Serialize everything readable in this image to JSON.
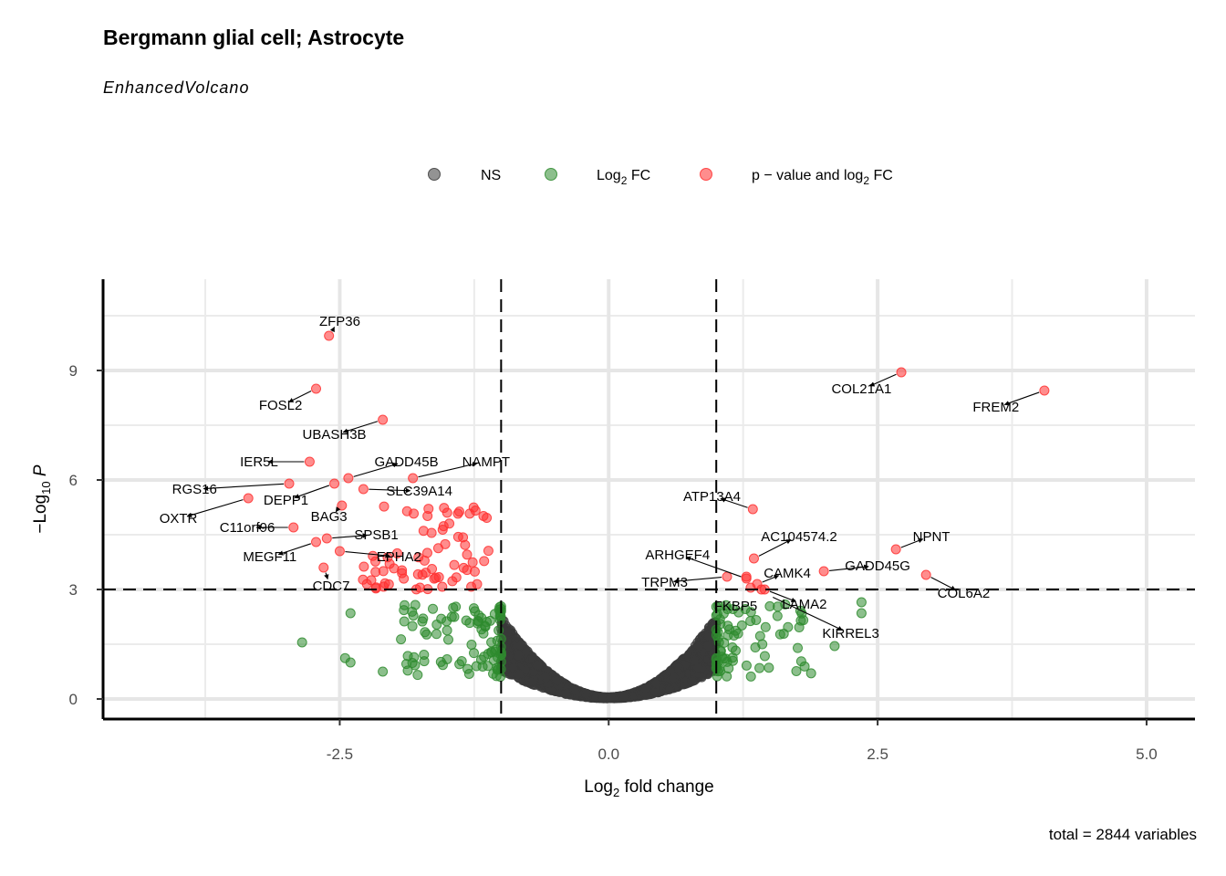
{
  "title": "Bergmann glial cell; Astrocyte",
  "subtitle": "EnhancedVolcano",
  "caption": "total = 2844 variables",
  "colors": {
    "ns": "#3a3a3a",
    "fc": "#2e8b2e",
    "both": "#ff3030"
  },
  "chart_data": {
    "type": "scatter",
    "xlabel": "Log2 fold change",
    "ylabel": "-Log10 P",
    "xlim": [
      -4.7,
      5.45
    ],
    "ylim": [
      -0.55,
      11.5
    ],
    "x_ticks": [
      "-2.5",
      "0.0",
      "2.5",
      "5.0"
    ],
    "y_ticks": [
      "0",
      "3",
      "6",
      "9"
    ],
    "fc_cutoff": 1,
    "p_cutoff": 3,
    "grid": true,
    "legend_position": "top",
    "legend": [
      {
        "key": "ns",
        "label": "NS"
      },
      {
        "key": "fc",
        "label": "Log2 FC"
      },
      {
        "key": "both",
        "label": "p - value and log2 FC"
      }
    ],
    "labeled_genes": [
      {
        "name": "ZFP36",
        "x": -2.6,
        "y": 9.95,
        "lx": -2.5,
        "ly": 10.35
      },
      {
        "name": "FOSL2",
        "x": -2.72,
        "y": 8.5,
        "lx": -3.05,
        "ly": 8.05
      },
      {
        "name": "UBASH3B",
        "x": -2.1,
        "y": 7.65,
        "lx": -2.55,
        "ly": 7.25
      },
      {
        "name": "IER5L",
        "x": -2.78,
        "y": 6.5,
        "lx": -3.25,
        "ly": 6.5
      },
      {
        "name": "GADD45B",
        "x": -2.42,
        "y": 6.05,
        "lx": -1.88,
        "ly": 6.5
      },
      {
        "name": "NAMPT",
        "x": -1.82,
        "y": 6.05,
        "lx": -1.14,
        "ly": 6.5
      },
      {
        "name": "RGS16",
        "x": -2.97,
        "y": 5.9,
        "lx": -3.85,
        "ly": 5.75
      },
      {
        "name": "DEPP1",
        "x": -2.55,
        "y": 5.9,
        "lx": -3.0,
        "ly": 5.45
      },
      {
        "name": "SLC39A14",
        "x": -2.28,
        "y": 5.75,
        "lx": -1.76,
        "ly": 5.7
      },
      {
        "name": "OXTR",
        "x": -3.35,
        "y": 5.5,
        "lx": -4.0,
        "ly": 4.95
      },
      {
        "name": "BAG3",
        "x": -2.48,
        "y": 5.3,
        "lx": -2.6,
        "ly": 5.0
      },
      {
        "name": "C11orf96",
        "x": -2.93,
        "y": 4.7,
        "lx": -3.36,
        "ly": 4.7
      },
      {
        "name": "SPSB1",
        "x": -2.62,
        "y": 4.4,
        "lx": -2.16,
        "ly": 4.5
      },
      {
        "name": "MEGF11",
        "x": -2.72,
        "y": 4.3,
        "lx": -3.15,
        "ly": 3.9
      },
      {
        "name": "EPHA2",
        "x": -2.5,
        "y": 4.05,
        "lx": -1.95,
        "ly": 3.9
      },
      {
        "name": "CDC7",
        "x": -2.65,
        "y": 3.6,
        "lx": -2.58,
        "ly": 3.1
      },
      {
        "name": "COL21A1",
        "x": 2.72,
        "y": 8.95,
        "lx": 2.35,
        "ly": 8.5
      },
      {
        "name": "FREM2",
        "x": 4.05,
        "y": 8.45,
        "lx": 3.6,
        "ly": 8.0
      },
      {
        "name": "ATP13A4",
        "x": 1.34,
        "y": 5.2,
        "lx": 0.96,
        "ly": 5.55
      },
      {
        "name": "AC104574.2",
        "x": 1.35,
        "y": 3.85,
        "lx": 1.77,
        "ly": 4.45
      },
      {
        "name": "NPNT",
        "x": 2.67,
        "y": 4.1,
        "lx": 3.0,
        "ly": 4.45
      },
      {
        "name": "ARHGEF4",
        "x": 1.28,
        "y": 3.3,
        "lx": 0.64,
        "ly": 3.95
      },
      {
        "name": "GADD45G",
        "x": 2.0,
        "y": 3.5,
        "lx": 2.5,
        "ly": 3.65
      },
      {
        "name": "CAMK4",
        "x": 1.38,
        "y": 3.15,
        "lx": 1.66,
        "ly": 3.45
      },
      {
        "name": "TRPM3",
        "x": 1.1,
        "y": 3.35,
        "lx": 0.52,
        "ly": 3.2
      },
      {
        "name": "COL6A2",
        "x": 2.95,
        "y": 3.4,
        "lx": 3.3,
        "ly": 2.9
      },
      {
        "name": "FKBP5",
        "x": 1.12,
        "y": 2.95,
        "lx": 1.18,
        "ly": 2.55
      },
      {
        "name": "LAMA2",
        "x": 1.45,
        "y": 3.0,
        "lx": 1.82,
        "ly": 2.6
      },
      {
        "name": "KIRREL3",
        "x": 1.48,
        "y": 2.85,
        "lx": 2.25,
        "ly": 1.8
      }
    ]
  }
}
